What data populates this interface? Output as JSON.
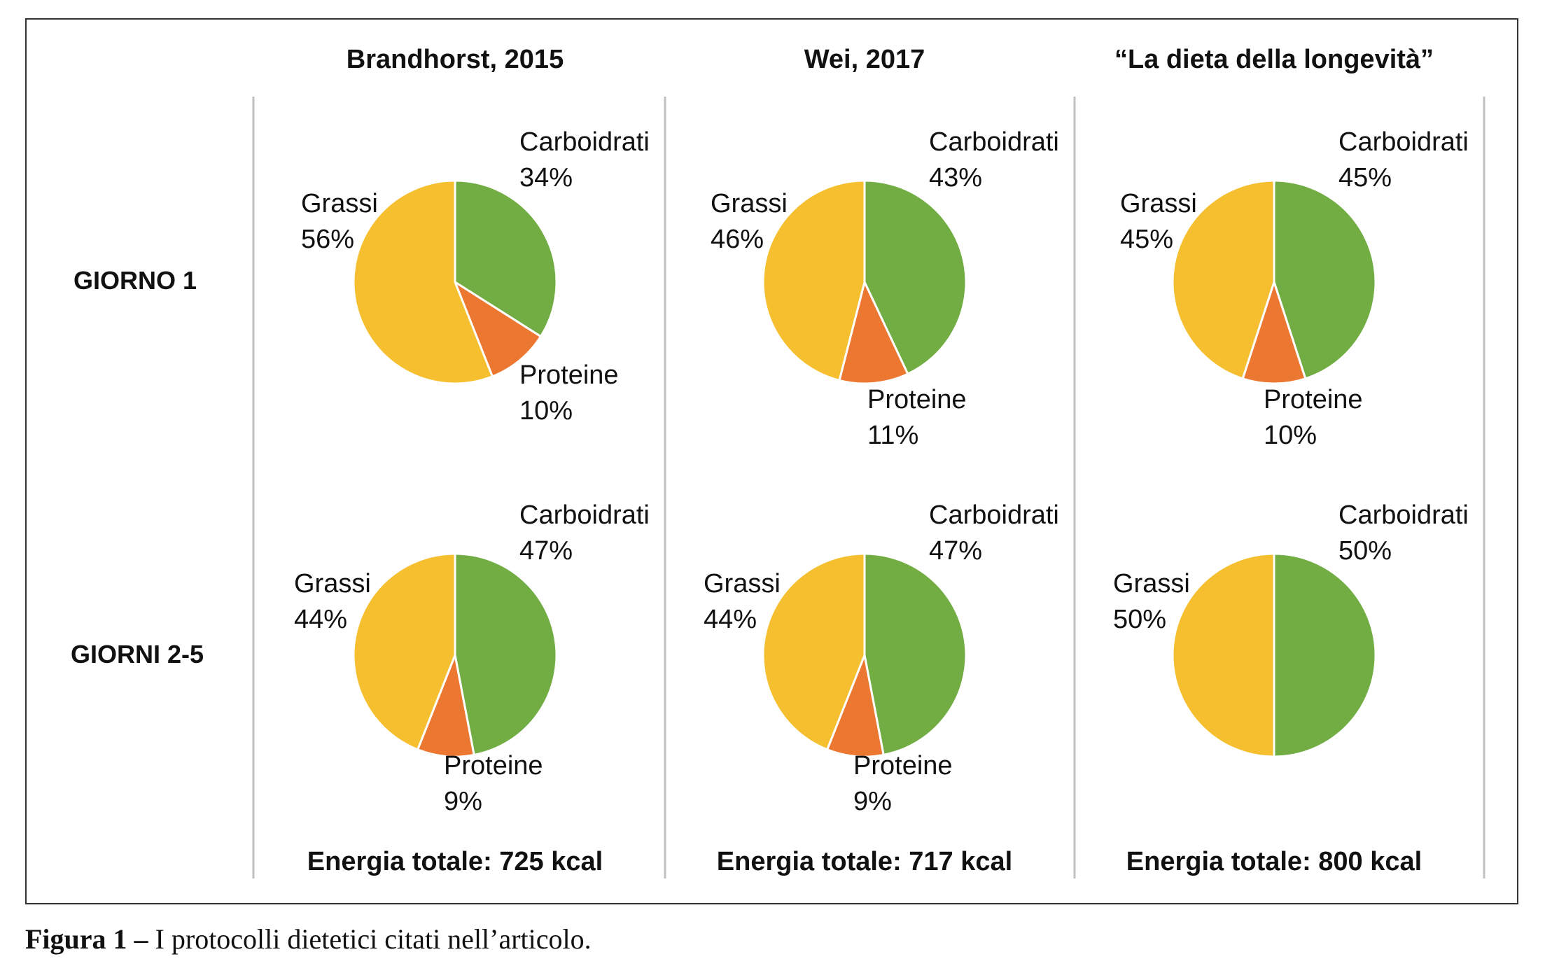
{
  "caption": {
    "lead": "Figura 1 –",
    "text": "I protocolli dietetici citati nell’articolo."
  },
  "colors": {
    "carboidrati": "#72ad44",
    "grassi": "#f5bf30",
    "proteine": "#ec7731",
    "divider": "#c0c0c0"
  },
  "chart_data": {
    "type": "pie",
    "columns": [
      "Brandhorst, 2015",
      "Wei, 2017",
      "“La dieta della longevità”"
    ],
    "rows": [
      "GIORNO 1",
      "GIORNI 2-5"
    ],
    "totals": [
      "Energia totale: 725 kcal",
      "Energia totale: 717 kcal",
      "Energia totale: 800 kcal"
    ],
    "pies": [
      {
        "name": "brandhorst-giorno1",
        "row": 0,
        "col": 0,
        "slices": [
          {
            "key": "carboidrati",
            "label": "Carboidrati",
            "value": 34,
            "text": "34%"
          },
          {
            "key": "proteine",
            "label": "Proteine",
            "value": 10,
            "text": "10%"
          },
          {
            "key": "grassi",
            "label": "Grassi",
            "value": 56,
            "text": "56%"
          }
        ]
      },
      {
        "name": "wei-giorno1",
        "row": 0,
        "col": 1,
        "slices": [
          {
            "key": "carboidrati",
            "label": "Carboidrati",
            "value": 43,
            "text": "43%"
          },
          {
            "key": "proteine",
            "label": "Proteine",
            "value": 11,
            "text": "11%"
          },
          {
            "key": "grassi",
            "label": "Grassi",
            "value": 46,
            "text": "46%"
          }
        ]
      },
      {
        "name": "longevita-giorno1",
        "row": 0,
        "col": 2,
        "slices": [
          {
            "key": "carboidrati",
            "label": "Carboidrati",
            "value": 45,
            "text": "45%"
          },
          {
            "key": "proteine",
            "label": "Proteine",
            "value": 10,
            "text": "10%"
          },
          {
            "key": "grassi",
            "label": "Grassi",
            "value": 45,
            "text": "45%"
          }
        ]
      },
      {
        "name": "brandhorst-giorni2-5",
        "row": 1,
        "col": 0,
        "slices": [
          {
            "key": "carboidrati",
            "label": "Carboidrati",
            "value": 47,
            "text": "47%"
          },
          {
            "key": "proteine",
            "label": "Proteine",
            "value": 9,
            "text": "9%"
          },
          {
            "key": "grassi",
            "label": "Grassi",
            "value": 44,
            "text": "44%"
          }
        ]
      },
      {
        "name": "wei-giorni2-5",
        "row": 1,
        "col": 1,
        "slices": [
          {
            "key": "carboidrati",
            "label": "Carboidrati",
            "value": 47,
            "text": "47%"
          },
          {
            "key": "proteine",
            "label": "Proteine",
            "value": 9,
            "text": "9%"
          },
          {
            "key": "grassi",
            "label": "Grassi",
            "value": 44,
            "text": "44%"
          }
        ]
      },
      {
        "name": "longevita-giorni2-5",
        "row": 1,
        "col": 2,
        "slices": [
          {
            "key": "carboidrati",
            "label": "Carboidrati",
            "value": 50,
            "text": "50%"
          },
          {
            "key": "grassi",
            "label": "Grassi",
            "value": 50,
            "text": "50%"
          }
        ]
      }
    ]
  }
}
